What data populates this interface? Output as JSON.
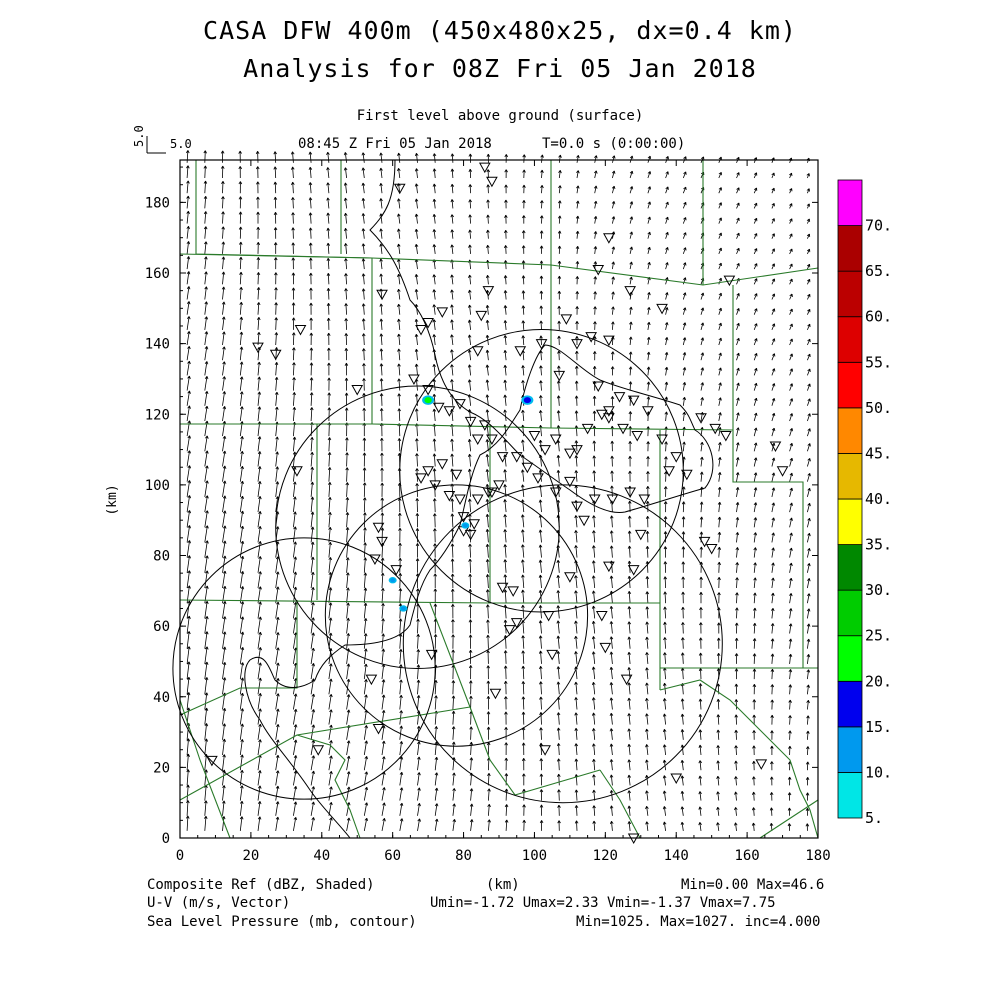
{
  "header": {
    "title_line1": "CASA DFW 400m (450x480x25, dx=0.4 km)",
    "title_line2": "Analysis for 08Z Fri 05 Jan 2018",
    "subtitle": "First level above ground (surface)",
    "valid_time": "08:45 Z Fri 05 Jan 2018",
    "model_time": "T=0.0 s (0:00:00)",
    "ref_vector_label_vertical": "5.0",
    "ref_vector_label": "5.0"
  },
  "footer": {
    "field1": "Composite Ref (dBZ, Shaded)",
    "field2": "U-V (m/s, Vector)",
    "field3": "Sea Level Pressure (mb, contour)",
    "axis_unit": "(km)",
    "ref_stats": "Min=0.00 Max=46.6",
    "wind_stats": "Umin=-1.72 Umax=2.33 Vmin=-1.37 Vmax=7.75",
    "pressure_stats": "Min=1025. Max=1027. inc=4.000"
  },
  "colorbar": {
    "labels": [
      "5.",
      "10.",
      "15.",
      "20.",
      "25.",
      "30.",
      "35.",
      "40.",
      "45.",
      "50.",
      "55.",
      "60.",
      "65.",
      "70."
    ],
    "colors": [
      "#00e6e6",
      "#0099ee",
      "#0000ee",
      "#00ff00",
      "#00cc00",
      "#008800",
      "#ffff00",
      "#e6b800",
      "#ff8800",
      "#ff0000",
      "#dd0000",
      "#bb0000",
      "#aa0000",
      "#ff00ff"
    ]
  },
  "chart_data": {
    "type": "map-plot",
    "xlabel": "(km)",
    "ylabel": "(km)",
    "xlim": [
      0,
      180
    ],
    "ylim": [
      0,
      192
    ],
    "x_ticks": [
      0,
      20,
      40,
      60,
      80,
      100,
      120,
      140,
      160,
      180
    ],
    "y_ticks": [
      0,
      20,
      40,
      60,
      80,
      100,
      120,
      140,
      160,
      180
    ],
    "radar_range_rings": [
      {
        "center": [
          35,
          48
        ],
        "radius": 37
      },
      {
        "center": [
          67,
          88
        ],
        "radius": 40
      },
      {
        "center": [
          102,
          104
        ],
        "radius": 40
      },
      {
        "center": [
          78,
          63
        ],
        "radius": 37
      },
      {
        "center": [
          108,
          55
        ],
        "radius": 45
      }
    ],
    "reflectivity_echoes": [
      {
        "x": 70,
        "y": 124,
        "dbz": 22
      },
      {
        "x": 98,
        "y": 124,
        "dbz": 18
      },
      {
        "x": 80.5,
        "y": 88.5,
        "dbz": 12
      },
      {
        "x": 60,
        "y": 73,
        "dbz": 10
      },
      {
        "x": 63,
        "y": 65,
        "dbz": 12
      }
    ],
    "stations": [
      [
        9,
        22
      ],
      [
        39,
        25
      ],
      [
        56,
        31
      ],
      [
        54,
        45
      ],
      [
        71,
        52
      ],
      [
        89,
        41
      ],
      [
        93,
        59
      ],
      [
        95,
        61
      ],
      [
        103,
        25
      ],
      [
        105,
        52
      ],
      [
        120,
        54
      ],
      [
        126,
        45
      ],
      [
        128,
        0
      ],
      [
        140,
        17
      ],
      [
        164,
        21
      ],
      [
        33,
        104
      ],
      [
        50,
        127
      ],
      [
        57,
        154
      ],
      [
        62,
        184
      ],
      [
        34,
        144
      ],
      [
        27,
        137
      ],
      [
        22,
        139
      ],
      [
        56,
        88
      ],
      [
        57,
        84
      ],
      [
        55,
        79
      ],
      [
        61,
        76
      ],
      [
        87,
        155
      ],
      [
        85,
        148
      ],
      [
        84,
        138
      ],
      [
        70,
        146
      ],
      [
        68,
        144
      ],
      [
        66,
        130
      ],
      [
        74,
        149
      ],
      [
        88,
        186
      ],
      [
        86,
        190
      ],
      [
        70,
        127
      ],
      [
        73,
        122
      ],
      [
        76,
        121
      ],
      [
        79,
        123
      ],
      [
        82,
        118
      ],
      [
        84,
        113
      ],
      [
        86,
        117
      ],
      [
        88,
        113
      ],
      [
        91,
        108
      ],
      [
        84,
        96
      ],
      [
        88,
        98
      ],
      [
        74,
        106
      ],
      [
        70,
        104
      ],
      [
        68,
        102
      ],
      [
        72,
        100
      ],
      [
        76,
        97
      ],
      [
        78,
        103
      ],
      [
        79,
        96
      ],
      [
        80,
        91
      ],
      [
        80,
        87
      ],
      [
        83,
        89
      ],
      [
        82,
        86
      ],
      [
        87,
        98
      ],
      [
        90,
        100
      ],
      [
        101,
        102
      ],
      [
        106,
        98
      ],
      [
        110,
        101
      ],
      [
        112,
        94
      ],
      [
        114,
        90
      ],
      [
        117,
        96
      ],
      [
        122,
        96
      ],
      [
        127,
        98
      ],
      [
        131,
        96
      ],
      [
        130,
        86
      ],
      [
        128,
        76
      ],
      [
        121,
        77
      ],
      [
        119,
        63
      ],
      [
        110,
        74
      ],
      [
        104,
        63
      ],
      [
        94,
        70
      ],
      [
        91,
        71
      ],
      [
        96,
        138
      ],
      [
        102,
        140
      ],
      [
        107,
        131
      ],
      [
        109,
        147
      ],
      [
        112,
        140
      ],
      [
        116,
        142
      ],
      [
        121,
        141
      ],
      [
        118,
        128
      ],
      [
        119,
        120
      ],
      [
        121,
        121
      ],
      [
        124,
        125
      ],
      [
        128,
        124
      ],
      [
        132,
        121
      ],
      [
        136,
        113
      ],
      [
        140,
        108
      ],
      [
        138,
        104
      ],
      [
        143,
        103
      ],
      [
        147,
        119
      ],
      [
        151,
        116
      ],
      [
        154,
        114
      ],
      [
        168,
        111
      ],
      [
        170,
        104
      ],
      [
        148,
        84
      ],
      [
        150,
        82
      ],
      [
        155,
        158
      ],
      [
        136,
        150
      ],
      [
        127,
        155
      ],
      [
        121,
        170
      ],
      [
        118,
        161
      ],
      [
        112,
        110
      ],
      [
        106,
        113
      ],
      [
        100,
        114
      ],
      [
        95,
        108
      ],
      [
        98,
        105
      ],
      [
        103,
        110
      ],
      [
        110,
        109
      ],
      [
        115,
        116
      ],
      [
        121,
        119
      ],
      [
        125,
        116
      ],
      [
        129,
        114
      ]
    ]
  }
}
